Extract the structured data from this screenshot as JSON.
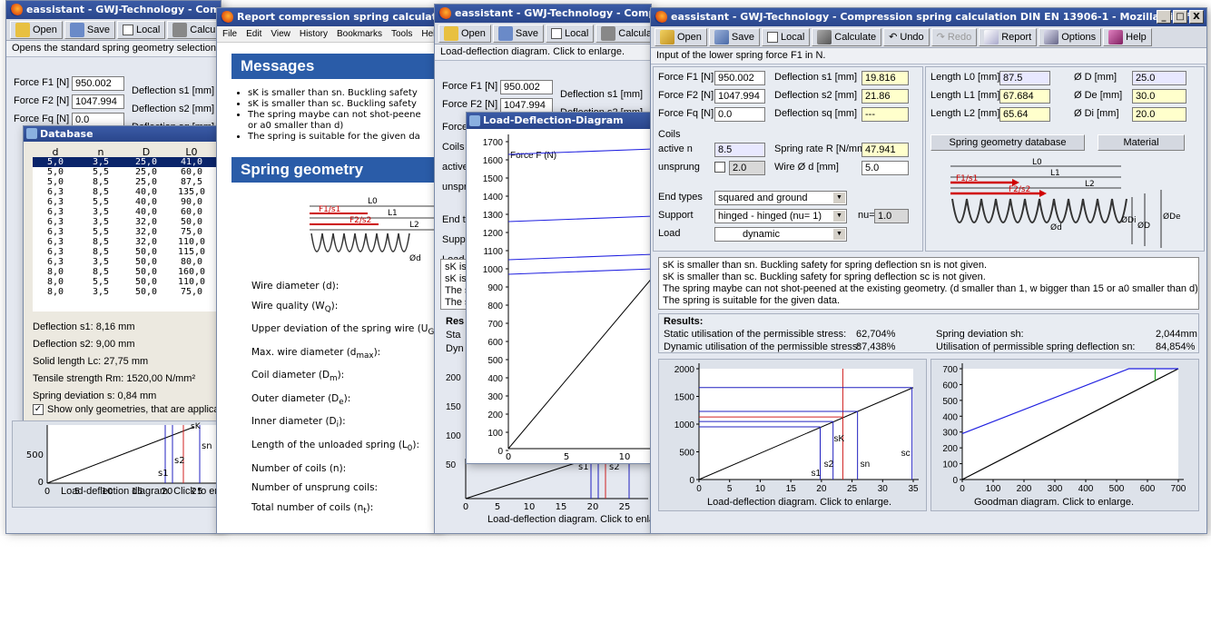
{
  "main": {
    "title": "eassistant - GWJ-Technology - Compression spring calculation DIN EN 13906-1 - Mozilla Firefox",
    "window_buttons": [
      "_",
      "□",
      "X"
    ],
    "toolbar": {
      "open": "Open",
      "save": "Save",
      "local": "Local",
      "calculate": "Calculate",
      "undo": "Undo",
      "redo": "Redo",
      "report": "Report",
      "options": "Options",
      "help": "Help"
    },
    "status": "Input of the lower spring force F1 in N.",
    "fields": {
      "f1_label": "Force F1 [N]",
      "f1": "950.002",
      "f2_label": "Force F2 [N]",
      "f2": "1047.994",
      "fq_label": "Force Fq [N]",
      "fq": "0.0",
      "s1_label": "Deflection s1 [mm]",
      "s1": "19.816",
      "s2_label": "Deflection s2 [mm]",
      "s2": "21.86",
      "sq_label": "Deflection sq [mm]",
      "sq": "---",
      "coils_label": "Coils",
      "active_label": "active n",
      "active": "8.5",
      "rate_label": "Spring rate R [N/mm]",
      "rate": "47.941",
      "unsprung_label": "unsprung",
      "unsprung": "2.0",
      "wire_label": "Wire Ø d [mm]",
      "wire": "5.0",
      "endtypes_label": "End types",
      "endtypes": "squared and ground",
      "support_label": "Support",
      "support": "hinged - hinged (nu= 1)",
      "nu_label": "nu=",
      "nu": "1.0",
      "load_label": "Load",
      "load": "dynamic",
      "l0_label": "Length L0 [mm]",
      "l0": "87.5",
      "l1_label": "Length L1 [mm]",
      "l1": "67.684",
      "l2_label": "Length L2 [mm]",
      "l2": "65.64",
      "d_label": "Ø D [mm]",
      "d": "25.0",
      "de_label": "Ø De [mm]",
      "de": "30.0",
      "di_label": "Ø Di [mm]",
      "di": "20.0"
    },
    "db_button": "Spring geometry database",
    "material_button": "Material",
    "spring_labels": {
      "l0": "L0",
      "l1": "L1",
      "l2": "L2",
      "f1s1": "F1/s1",
      "f2s2": "F2/s2",
      "od": "Ød",
      "odi": "ØDi",
      "oD": "ØD",
      "ode": "ØDe"
    },
    "messages": [
      "sK is smaller than sn. Buckling safety for spring deflection sn is not given.",
      "sK is smaller than sc. Buckling safety for spring deflection sc is not given.",
      "The spring maybe can not shot-peened at the existing geometry. (d smaller than 1, w bigger than 15 or a0 smaller than d)",
      "The spring is suitable for the given data."
    ],
    "results": {
      "title": "Results:",
      "static_label": "Static utilisation of the permissible stress:",
      "static": "62,704%",
      "dynamic_label": "Dynamic utilisation of the permissible stress:",
      "dynamic": "87,438%",
      "sh_label": "Spring deviation sh:",
      "sh": "2,044mm",
      "sn_label": "Utilisation of permissible spring deflection sn:",
      "sn": "84,854%"
    },
    "load_chart_caption": "Load-deflection diagram. Click to enlarge.",
    "goodman_caption": "Goodman diagram. Click to enlarge."
  },
  "chart_data": [
    {
      "type": "line",
      "x_ticks": [
        "0",
        "5",
        "10",
        "15",
        "20",
        "25",
        "30",
        "35"
      ],
      "y_ticks": [
        "0",
        "500",
        "1000",
        "1500",
        "2000"
      ],
      "xlim": [
        0,
        35
      ],
      "ylim": [
        0,
        2000
      ],
      "series": [
        {
          "x": [
            0,
            35
          ],
          "y": [
            0,
            1660
          ]
        }
      ],
      "markers": [
        {
          "label": "s1",
          "x": 19.8,
          "y": 950,
          "color": "#2020c0"
        },
        {
          "label": "s2",
          "x": 21.9,
          "y": 1048,
          "color": "#2020c0"
        },
        {
          "label": "sK",
          "x": 23.5,
          "y": 1130,
          "color": "#d02020"
        },
        {
          "label": "sn",
          "x": 25.9,
          "y": 1230,
          "color": "#2020c0"
        },
        {
          "label": "sc",
          "x": 34.8,
          "y": 1660,
          "color": "#2020c0"
        }
      ],
      "caption": "Load-deflection diagram. Click to enlarge."
    },
    {
      "type": "line",
      "x_ticks": [
        "0",
        "100",
        "200",
        "300",
        "400",
        "500",
        "600",
        "700"
      ],
      "y_ticks": [
        "0",
        "100",
        "200",
        "300",
        "400",
        "500",
        "600",
        "700"
      ],
      "xlim": [
        0,
        700
      ],
      "ylim": [
        0,
        700
      ],
      "series": [
        {
          "x": [
            0,
            700
          ],
          "y": [
            0,
            700
          ],
          "color": "#000"
        },
        {
          "x": [
            0,
            540,
            700
          ],
          "y": [
            290,
            700,
            700
          ],
          "color": "#2020e0"
        },
        {
          "x": [
            625,
            625
          ],
          "y": [
            625,
            700
          ],
          "color": "#20a020"
        }
      ],
      "caption": "Goodman diagram. Click to enlarge."
    }
  ],
  "bg1": {
    "title": "eassistant - GWJ-Technology - Compression spring",
    "open": "Open",
    "save": "Save",
    "local": "Local",
    "calculate": "Calculate",
    "status": "Opens the standard spring geometry selection dialog",
    "f1_label": "Force F1 [N]",
    "f1": "950.002",
    "f2_label": "Force F2 [N]",
    "f2": "1047.994",
    "fq_label": "Force Fq [N]",
    "fq": "0.0",
    "s1_label": "Deflection s1 [mm]",
    "s2_label": "Deflection s2 [mm]",
    "sq_label": "Deflection sq [mm]",
    "db_title": "Database",
    "db_headers": [
      "d",
      "n",
      "D",
      "L0"
    ],
    "db_rows": [
      [
        "5,0",
        "3,5",
        "25,0",
        "41,0"
      ],
      [
        "5,0",
        "5,5",
        "25,0",
        "60,0"
      ],
      [
        "5,0",
        "8,5",
        "25,0",
        "87,5"
      ],
      [
        "6,3",
        "8,5",
        "40,0",
        "135,0"
      ],
      [
        "6,3",
        "5,5",
        "40,0",
        "90,0"
      ],
      [
        "6,3",
        "3,5",
        "40,0",
        "60,0"
      ],
      [
        "6,3",
        "3,5",
        "32,0",
        "50,0"
      ],
      [
        "6,3",
        "5,5",
        "32,0",
        "75,0"
      ],
      [
        "6,3",
        "8,5",
        "32,0",
        "110,0"
      ],
      [
        "6,3",
        "8,5",
        "50,0",
        "115,0"
      ],
      [
        "6,3",
        "3,5",
        "50,0",
        "80,0"
      ],
      [
        "8,0",
        "8,5",
        "50,0",
        "160,0"
      ],
      [
        "8,0",
        "5,5",
        "50,0",
        "110,0"
      ],
      [
        "8,0",
        "3,5",
        "50,0",
        "75,0"
      ]
    ],
    "db_info": [
      "Deflection s1: 8,16 mm",
      "Deflection s2: 9,00 mm",
      "Solid length Lc: 27,75 mm",
      "Tensile strength Rm: 1520,00 N/mm²",
      "Spring deviation s: 0,84 mm"
    ],
    "db_check": "Show only geometries, that are applicable for t",
    "chart_caption": "Load-deflection diagram. Click to enlarge.",
    "x_ticks": [
      "0",
      "5",
      "10",
      "15",
      "20",
      "25",
      "30"
    ],
    "y_ticks": [
      "0",
      "500"
    ],
    "labels": {
      "s1": "s1",
      "s2": "s2",
      "sn": "sn",
      "sk": "sK"
    }
  },
  "bg2": {
    "title": "Report compression spring calculation DIN EN 13906",
    "menu": [
      "File",
      "Edit",
      "View",
      "History",
      "Bookmarks",
      "Tools",
      "Help"
    ],
    "messages_heading": "Messages",
    "bullets": [
      "sK is smaller than sn. Buckling safety",
      "sK is smaller than sc. Buckling safety",
      "The spring maybe can not shot-peene",
      "or a0 smaller than d)",
      "The spring is suitable for the given da"
    ],
    "geometry_heading": "Spring geometry",
    "geo_labels": {
      "l0": "L0",
      "l1": "L1",
      "l2": "L2",
      "f1s1": "F1/s1",
      "f2s2": "F2/s2",
      "od": "Ød"
    },
    "items": [
      "Wire diameter (d):",
      "Wire quality (W",
      "Upper deviation of the spring wire (U",
      "Max. wire diameter (d",
      "Coil diameter (D",
      "Outer diameter (D",
      "Inner diameter (D",
      "Length of the unloaded spring (L",
      "Number of coils (n):",
      "Number of unsprung coils:",
      "Total number of coils (n"
    ],
    "subs": [
      "Q",
      "G",
      "max",
      "m",
      "e",
      "i",
      "0",
      "t"
    ],
    "tails": [
      "):",
      "):",
      "):",
      "):",
      "):",
      "):",
      "):",
      "):"
    ]
  },
  "bg3": {
    "title": "eassistant - GWJ-Technology - Compression spring",
    "open": "Open",
    "save": "Save",
    "local": "Local",
    "calculate": "Calculate",
    "status": "Load-deflection diagram. Click to enlarge.",
    "f1_label": "Force F1 [N]",
    "f1": "950.002",
    "f2_label": "Force F2 [N]",
    "f2": "1047.994",
    "s1_label": "Deflection s1 [mm]",
    "s2_label": "Deflection s2 [mm]",
    "side": [
      "Force",
      "Coils",
      "active",
      "unsprun",
      "End ty",
      "Suppo",
      "Load"
    ],
    "msgs": [
      "sK is",
      "sK is",
      "The s",
      "The s"
    ],
    "res": [
      "Res",
      "Sta",
      "Dyn"
    ],
    "ticks_left": [
      "200",
      "150",
      "100",
      "50"
    ],
    "popup_title": "Load-Deflection-Diagram",
    "popup_y_ticks": [
      "0",
      "100",
      "200",
      "300",
      "400",
      "500",
      "600",
      "700",
      "800",
      "900",
      "1000",
      "1100",
      "1200",
      "1300",
      "1400",
      "1500",
      "1600",
      "1700"
    ],
    "popup_x_ticks": [
      "0",
      "5",
      "10"
    ],
    "popup_force": "Force F (N)",
    "bottom_x_ticks": [
      "0",
      "5",
      "10",
      "15",
      "20",
      "25"
    ],
    "bottom_labels": {
      "s1": "s1",
      "s2": "s2"
    },
    "chart_caption": "Load-deflection diagram. Click to enlarge."
  }
}
